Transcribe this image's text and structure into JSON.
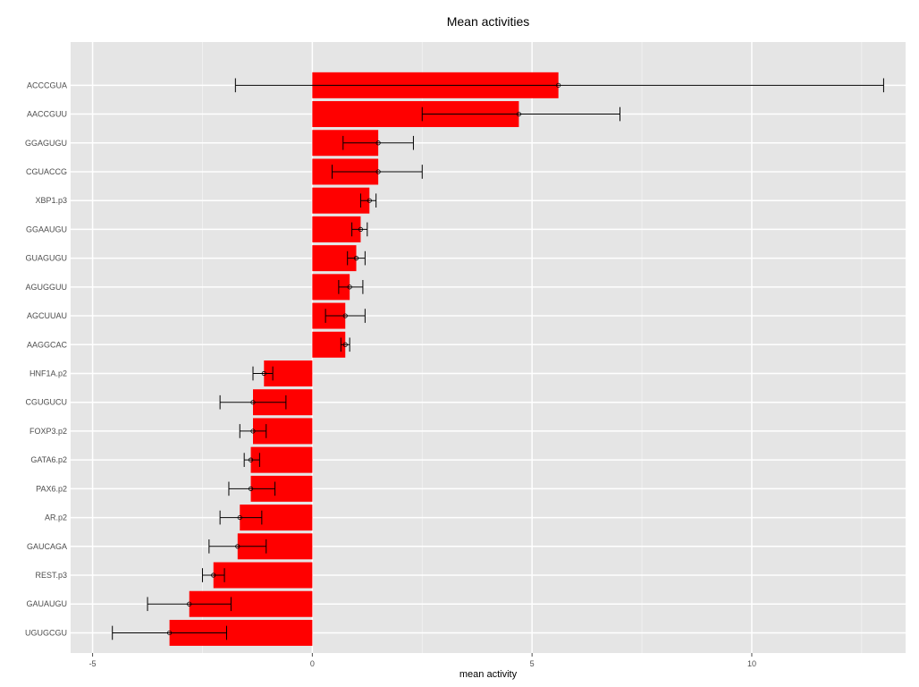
{
  "chart_data": {
    "type": "bar",
    "orientation": "horizontal",
    "title": "Mean activities",
    "xlabel": "mean activity",
    "ylabel": "",
    "xlim": [
      -5.5,
      13.5
    ],
    "x_ticks": [
      -5,
      0,
      5,
      10
    ],
    "x_tick_labels": [
      "-5",
      "0",
      "5",
      "10"
    ],
    "grid": true,
    "legend": "none",
    "categories": [
      "ACCCGUA",
      "AACCGUU",
      "GGAGUGU",
      "CGUACCG",
      "XBP1.p3",
      "GGAAUGU",
      "GUAGUGU",
      "AGUGGUU",
      "AGCUUAU",
      "AAGGCAC",
      "HNF1A.p2",
      "CGUGUCU",
      "FOXP3.p2",
      "GATA6.p2",
      "PAX6.p2",
      "AR.p2",
      "GAUCAGA",
      "REST.p3",
      "GAUAUGU",
      "UGUGCGU"
    ],
    "values": [
      5.6,
      4.7,
      1.5,
      1.5,
      1.3,
      1.1,
      1.0,
      0.85,
      0.75,
      0.75,
      -1.1,
      -1.35,
      -1.35,
      -1.4,
      -1.4,
      -1.65,
      -1.7,
      -2.25,
      -2.8,
      -3.25
    ],
    "error_low": [
      -1.75,
      2.5,
      0.7,
      0.45,
      1.1,
      0.9,
      0.8,
      0.6,
      0.3,
      0.65,
      -1.35,
      -2.1,
      -1.65,
      -1.55,
      -1.9,
      -2.1,
      -2.35,
      -2.5,
      -3.75,
      -4.55
    ],
    "error_high": [
      13.0,
      7.0,
      2.3,
      2.5,
      1.45,
      1.25,
      1.2,
      1.15,
      1.2,
      0.85,
      -0.9,
      -0.6,
      -1.05,
      -1.2,
      -0.85,
      -1.15,
      -1.05,
      -2.0,
      -1.85,
      -1.95
    ],
    "colors": {
      "bar": "#ff0000",
      "panel": "#e5e5e5",
      "grid_major": "#ffffff",
      "grid_minor": "#f2f2f2",
      "errorbar": "#000000",
      "tick_label": "#4d4d4d"
    }
  }
}
